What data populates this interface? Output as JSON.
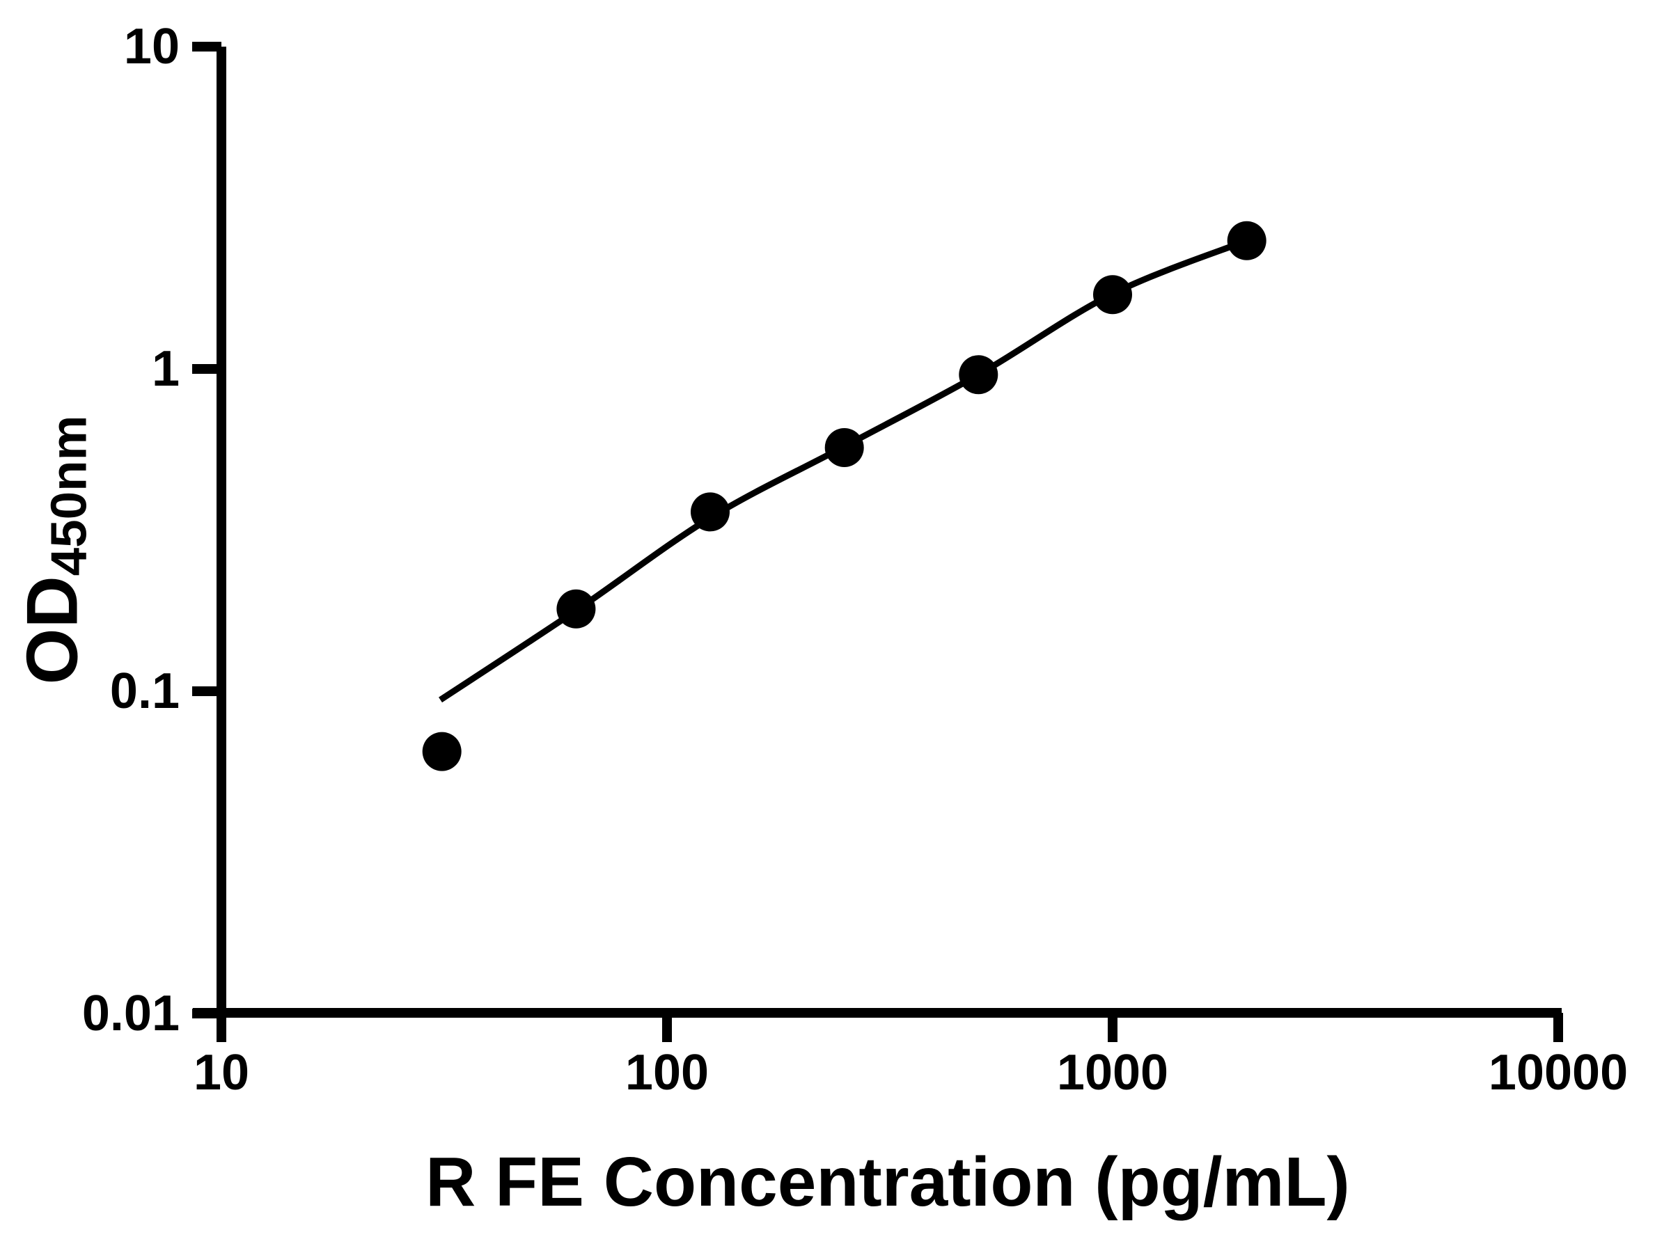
{
  "figure": {
    "background": "#ffffff",
    "ink": "#000000"
  },
  "chart_data": {
    "type": "scatter",
    "title": "",
    "xlabel": "R FE Concentration (pg/mL)",
    "ylabel_main": "OD",
    "ylabel_sub": "450nm",
    "x_scale": "log",
    "y_scale": "log",
    "xlim": [
      10,
      10000
    ],
    "ylim": [
      0.01,
      10
    ],
    "grid": false,
    "legend": false,
    "x_ticks": [
      {
        "value": 10,
        "label": "10"
      },
      {
        "value": 100,
        "label": "100"
      },
      {
        "value": 1000,
        "label": "1000"
      },
      {
        "value": 10000,
        "label": "10000"
      }
    ],
    "y_ticks": [
      {
        "value": 10,
        "label": "10"
      },
      {
        "value": 1,
        "label": "1"
      },
      {
        "value": 0.1,
        "label": "0.1"
      },
      {
        "value": 0.01,
        "label": "0.01"
      }
    ],
    "series": [
      {
        "name": "standard-points",
        "type": "scatter",
        "marker": "filled-circle",
        "color": "#000000",
        "x": [
          31.25,
          62.5,
          125,
          250,
          500,
          1000,
          2000
        ],
        "y": [
          0.065,
          0.18,
          0.36,
          0.57,
          0.96,
          1.7,
          2.5
        ]
      },
      {
        "name": "fitted-curve",
        "type": "line",
        "color": "#000000",
        "x": [
          31,
          62.5,
          125,
          250,
          500,
          1000,
          2000
        ],
        "y": [
          0.094,
          0.178,
          0.345,
          0.575,
          0.96,
          1.71,
          2.5
        ]
      }
    ]
  }
}
